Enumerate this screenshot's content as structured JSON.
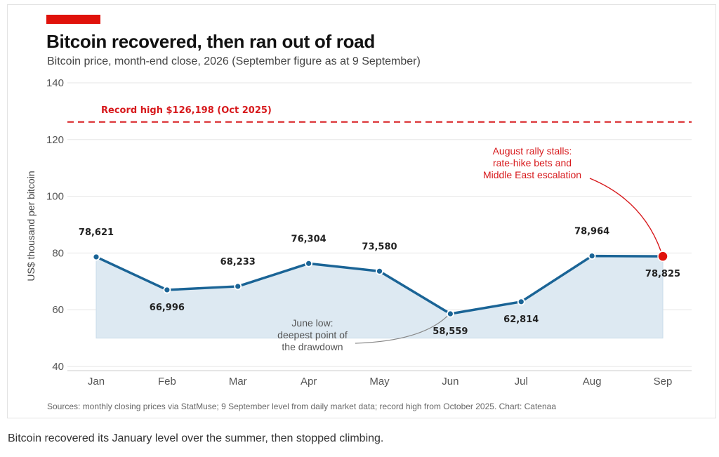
{
  "figure": {
    "title": "Bitcoin recovered, then ran out of road",
    "subtitle": "Bitcoin price, month-end close, 2026 (September figure as at 9 September)",
    "source": "Sources: monthly closing prices via StatMuse; 9 September level from daily market data; record high from October 2025. Chart: Catenaa",
    "caption": "Bitcoin recovered its January level over the summer, then stopped climbing.",
    "accent_color": "#e0120b"
  },
  "chart_data": {
    "type": "line",
    "title": "Bitcoin recovered, then ran out of road",
    "subtitle": "Bitcoin price, month-end close, 2026 (September figure as at 9 September)",
    "xlabel": "",
    "ylabel": "US$ thousand per bitcoin",
    "categories": [
      "Jan",
      "Feb",
      "Mar",
      "Apr",
      "May",
      "Jun",
      "Jul",
      "Aug",
      "Sep"
    ],
    "series": [
      {
        "values": [
          78.621,
          66.996,
          68.233,
          76.304,
          73.58,
          58.559,
          62.814,
          78.964,
          78.825
        ],
        "data_labels": [
          "78,621",
          "66,996",
          "68,233",
          "76,304",
          "73,580",
          "58,559",
          "62,814",
          "78,964",
          "78,825"
        ],
        "label_positions": [
          "above",
          "below",
          "above",
          "above",
          "above",
          "below",
          "below",
          "above",
          "below"
        ],
        "color": "#1a6496",
        "area_fill": "#dde9f2",
        "area_baseline": 50
      }
    ],
    "ylim": [
      40,
      140
    ],
    "yticks": [
      40,
      60,
      80,
      100,
      120,
      140
    ],
    "grid": true,
    "reference_line": {
      "value": 126.198,
      "label": "Record high $126,198 (Oct 2025)",
      "color": "#d7191c",
      "style": "dashed"
    },
    "annotations": [
      {
        "category": "Sep",
        "lines": [
          "August rally stalls:",
          "rate-hike bets and",
          "Middle East escalation"
        ],
        "color": "#d7191c",
        "highlight_point": true
      },
      {
        "category": "Jun",
        "lines": [
          "June low:",
          "deepest point of",
          "the drawdown"
        ],
        "color": "#555555"
      }
    ]
  }
}
